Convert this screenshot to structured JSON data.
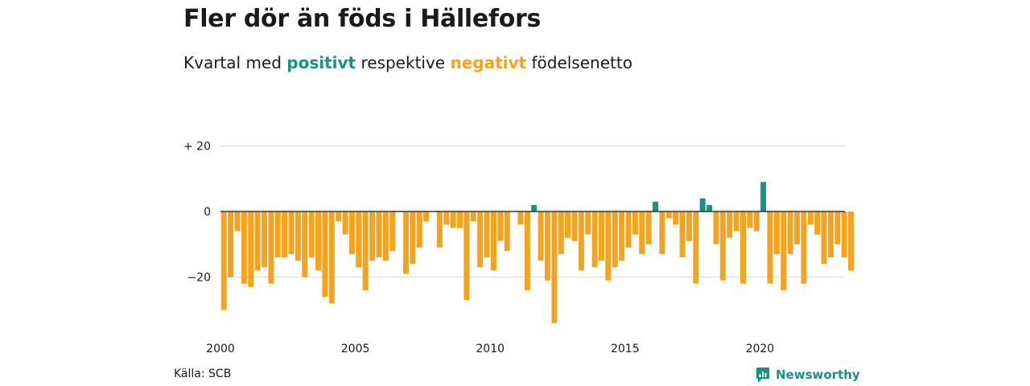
{
  "header": {
    "title": "Fler dör än föds i Hällefors",
    "subtitle_prefix": "Kvartal med ",
    "subtitle_positive": "positivt",
    "subtitle_middle": " respektive ",
    "subtitle_negative": "negativt",
    "subtitle_suffix": " födelsenetto"
  },
  "footer": {
    "source": "Källa: SCB",
    "brand": "Newsworthy"
  },
  "colors": {
    "positive": "#1a9181",
    "negative": "#f3a31d",
    "grid": "#d9d9d9",
    "zero_line": "#333333",
    "text": "#1a1a1a"
  },
  "chart_data": {
    "type": "bar",
    "title": "Fler dör än föds i Hällefors",
    "subtitle": "Kvartal med positivt respektive negativt födelsenetto",
    "xlabel": "",
    "ylabel": "",
    "x_start": "2000-Q1",
    "ylim": [
      -36,
      24
    ],
    "y_ticks": [
      {
        "value": 20,
        "label": "+ 20"
      },
      {
        "value": 0,
        "label": "0"
      },
      {
        "value": -20,
        "label": "−20"
      }
    ],
    "x_ticks": [
      {
        "year": 2000,
        "label": "2000"
      },
      {
        "year": 2005,
        "label": "2005"
      },
      {
        "year": 2010,
        "label": "2010"
      },
      {
        "year": 2015,
        "label": "2015"
      },
      {
        "year": 2020,
        "label": "2020"
      }
    ],
    "grid": true,
    "legend": "none",
    "values": [
      -30,
      -20,
      -6,
      -22,
      -23,
      -18,
      -17,
      -22,
      -14,
      -14,
      -13,
      -15,
      -20,
      -14,
      -18,
      -26,
      -28,
      -3,
      -7,
      -13,
      -17,
      -24,
      -15,
      -14,
      -15,
      -12,
      0,
      -19,
      -16,
      -11,
      -3,
      0,
      -11,
      -4,
      -5,
      -5,
      -27,
      -3,
      -17,
      -14,
      -18,
      -9,
      -12,
      0,
      -4,
      -24,
      2,
      -15,
      -21,
      -34,
      -13,
      -8,
      -9,
      -18,
      -7,
      -17,
      -15,
      -21,
      -17,
      -15,
      -11,
      -7,
      -13,
      -10,
      3,
      -13,
      -2,
      -4,
      -14,
      -9,
      -22,
      4,
      2,
      -10,
      -21,
      -8,
      -6,
      -22,
      -5,
      -6,
      9,
      -22,
      -13,
      -24,
      -13,
      -10,
      -22,
      -4,
      -7,
      -16,
      -14,
      -10,
      -14,
      -18
    ]
  }
}
